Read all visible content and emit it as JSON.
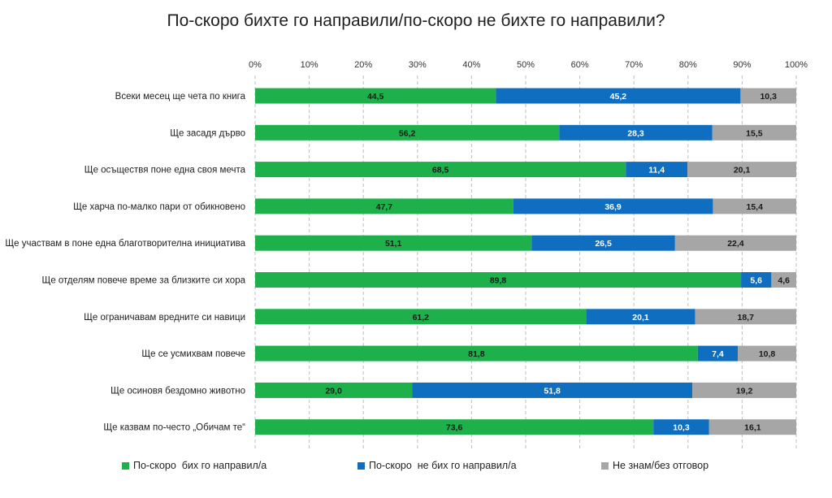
{
  "chart_data": {
    "type": "bar",
    "orientation": "horizontal",
    "stacked": true,
    "title": "По-скоро бихте го направили/по-скоро не бихте го направили?",
    "xlim": [
      0,
      100
    ],
    "x_ticks": [
      "0%",
      "10%",
      "20%",
      "30%",
      "40%",
      "50%",
      "60%",
      "70%",
      "80%",
      "90%",
      "100%"
    ],
    "grid": "vertical dashed",
    "legend_position": "bottom",
    "categories": [
      "Всеки месец ще чета по книга",
      "Ще засадя дърво",
      "Ще осъществя поне една своя мечта",
      "Ще харча по-малко пари от обикновено",
      "Ще участвам в поне една благотворителна инициатива",
      "Ще отделям повече време за близките си хора",
      "Ще ограничавам вредните си навици",
      "Ще се усмихвам повече",
      "Ще осиновя бездомно животно",
      "Ще казвам по-често „Обичам те“"
    ],
    "series": [
      {
        "name": "По-скоро  бих го направил/а",
        "color": "#1db04b",
        "values": [
          44.5,
          56.2,
          68.5,
          47.7,
          51.1,
          89.8,
          61.2,
          81.8,
          29.0,
          73.6
        ],
        "labels": [
          "44,5",
          "56,2",
          "68,5",
          "47,7",
          "51,1",
          "89,8",
          "61,2",
          "81,8",
          "29,0",
          "73,6"
        ]
      },
      {
        "name": "По-скоро  не бих го направил/а",
        "color": "#0f6ebf",
        "values": [
          45.2,
          28.3,
          11.4,
          36.9,
          26.5,
          5.6,
          20.1,
          7.4,
          51.8,
          10.3
        ],
        "labels": [
          "45,2",
          "28,3",
          "11,4",
          "36,9",
          "26,5",
          "5,6",
          "20,1",
          "7,4",
          "51,8",
          "10,3"
        ]
      },
      {
        "name": "Не знам/без отговор",
        "color": "#a6a6a6",
        "values": [
          10.3,
          15.5,
          20.1,
          15.4,
          22.4,
          4.6,
          18.7,
          10.8,
          19.2,
          16.1
        ],
        "labels": [
          "10,3",
          "15,5",
          "20,1",
          "15,4",
          "22,4",
          "4,6",
          "18,7",
          "10,8",
          "19,2",
          "16,1"
        ]
      }
    ]
  }
}
